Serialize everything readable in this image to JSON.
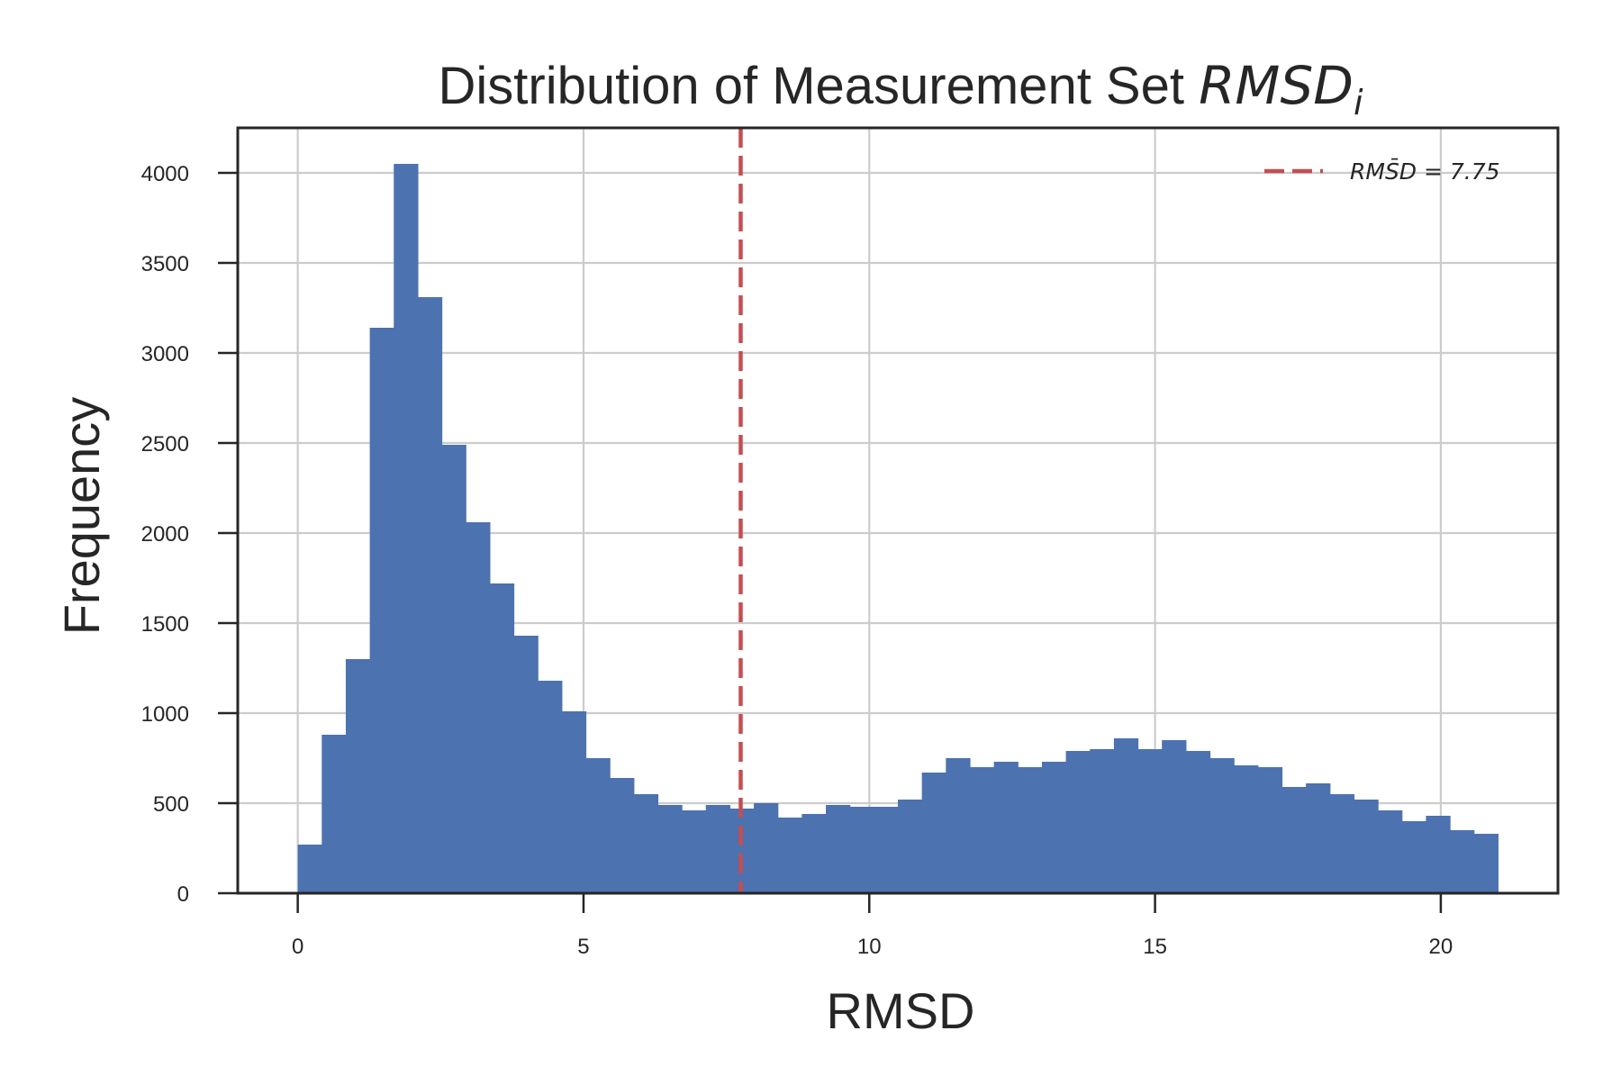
{
  "chart_data": {
    "type": "bar",
    "subtype": "histogram",
    "title": "Distribution of Measurement Set ",
    "title_math": "RMSD",
    "title_subscript": "i",
    "xlabel": "RMSD",
    "ylabel": "Frequency",
    "xlim": [
      -1.05,
      22.05
    ],
    "ylim": [
      0,
      4250
    ],
    "x_ticks": [
      0,
      5,
      10,
      15,
      20
    ],
    "y_ticks": [
      0,
      500,
      1000,
      1500,
      2000,
      2500,
      3000,
      3500,
      4000
    ],
    "grid": true,
    "bin_start": 0,
    "bin_width": 0.42,
    "values": [
      270,
      880,
      1300,
      3140,
      4050,
      3310,
      2490,
      2060,
      1720,
      1430,
      1180,
      1010,
      750,
      640,
      550,
      490,
      460,
      490,
      470,
      500,
      420,
      440,
      490,
      480,
      480,
      520,
      670,
      750,
      700,
      730,
      700,
      730,
      790,
      800,
      860,
      800,
      850,
      790,
      750,
      710,
      700,
      590,
      610,
      550,
      520,
      460,
      400,
      430,
      350,
      330
    ],
    "bar_color": "#4c72b0",
    "mean_line": {
      "x": 7.75,
      "color": "#c44e52",
      "style": "dashed",
      "legend_label": "RMS̄D = 7.75"
    },
    "legend_placement": "top-right"
  }
}
